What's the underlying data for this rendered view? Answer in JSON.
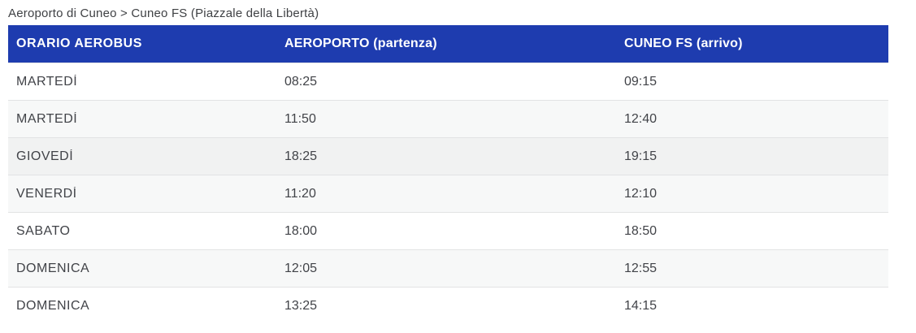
{
  "accent_color": "#1e3caf",
  "stripe_color": "#f7f8f8",
  "highlight_color": "#f1f2f2",
  "breadcrumb": {
    "text": "Aeroporto di Cuneo > Cuneo FS (Piazzale della Libertà)"
  },
  "table": {
    "columns": [
      {
        "label": "ORARIO AEROBUS"
      },
      {
        "label": "AEROPORTO (partenza)"
      },
      {
        "label": "CUNEO FS (arrivo)"
      }
    ],
    "highlighted_row_index": 2,
    "rows": [
      {
        "day": "MARTEDÍ",
        "departure": "08:25",
        "arrival": "09:15"
      },
      {
        "day": "MARTEDÍ",
        "departure": "11:50",
        "arrival": "12:40"
      },
      {
        "day": "GIOVEDÍ",
        "departure": "18:25",
        "arrival": "19:15"
      },
      {
        "day": "VENERDÍ",
        "departure": "11:20",
        "arrival": "12:10"
      },
      {
        "day": "SABATO",
        "departure": "18:00",
        "arrival": "18:50"
      },
      {
        "day": "DOMENICA",
        "departure": "12:05",
        "arrival": "12:55"
      },
      {
        "day": "DOMENICA",
        "departure": "13:25",
        "arrival": "14:15"
      }
    ]
  }
}
